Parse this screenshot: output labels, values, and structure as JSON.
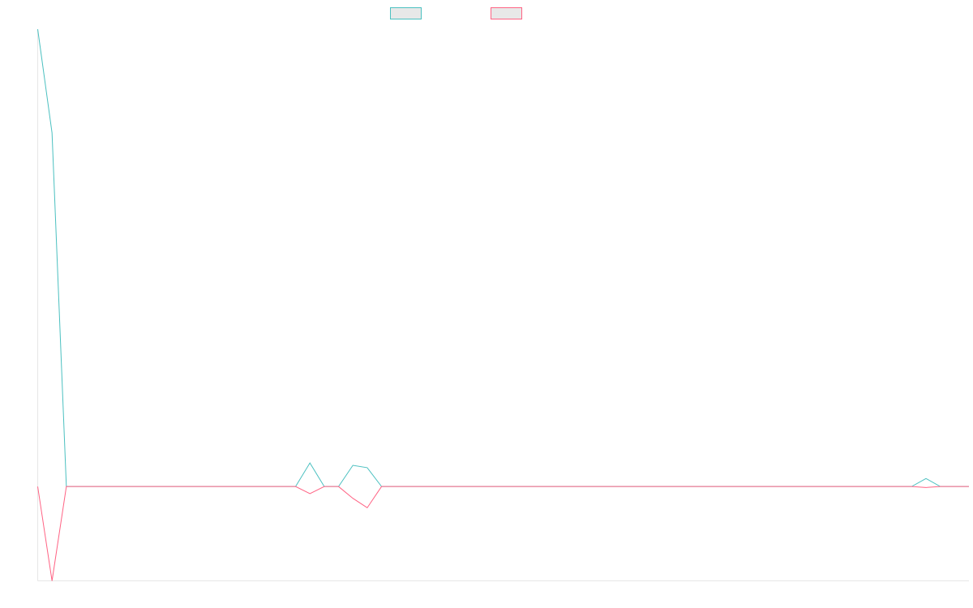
{
  "chart_data": {
    "type": "line",
    "title": "",
    "xlabel": "",
    "ylabel": "",
    "x": [
      0,
      1,
      2,
      3,
      4,
      5,
      6,
      7,
      8,
      9,
      10,
      11,
      12,
      13,
      14,
      15,
      16,
      17,
      18,
      19,
      20,
      21,
      22,
      23,
      24,
      25,
      26,
      27,
      28,
      29,
      30,
      31,
      32,
      33,
      34,
      35,
      36,
      37,
      38,
      39,
      40,
      41,
      42,
      43,
      44,
      45,
      46,
      47,
      48,
      49,
      50,
      51,
      52,
      53,
      54,
      55,
      56,
      57,
      58,
      59,
      60,
      61,
      62,
      63,
      64,
      65
    ],
    "ylim": [
      -20,
      97
    ],
    "grid": false,
    "legend": "top-center",
    "series": [
      {
        "name": "",
        "color": "#4bc0c0",
        "values": [
          97,
          75,
          0,
          0,
          0,
          0,
          0,
          0,
          0,
          0,
          0,
          0,
          0,
          0,
          0,
          0,
          0,
          0,
          0,
          5,
          0,
          0,
          4.5,
          4,
          0,
          0,
          0,
          0,
          0,
          0,
          0,
          0,
          0,
          0,
          0,
          0,
          0,
          0,
          0,
          0,
          0,
          0,
          0,
          0,
          0,
          0,
          0,
          0,
          0,
          0,
          0,
          0,
          0,
          0,
          0,
          0,
          0,
          0,
          0,
          0,
          0,
          0,
          1.7,
          0,
          0,
          0
        ]
      },
      {
        "name": "",
        "color": "#ff6384",
        "values": [
          0,
          -20,
          0,
          0,
          0,
          0,
          0,
          0,
          0,
          0,
          0,
          0,
          0,
          0,
          0,
          0,
          0,
          0,
          0,
          -1.5,
          0,
          0,
          -2.5,
          -4.5,
          0,
          0,
          0,
          0,
          0,
          0,
          0,
          0,
          0,
          0,
          0,
          0,
          0,
          0,
          0,
          0,
          0,
          0,
          0,
          0,
          0,
          0,
          0,
          0,
          0,
          0,
          0,
          0,
          0,
          0,
          0,
          0,
          0,
          0,
          0,
          0,
          0,
          0,
          -0.2,
          0,
          0,
          0
        ]
      }
    ]
  }
}
